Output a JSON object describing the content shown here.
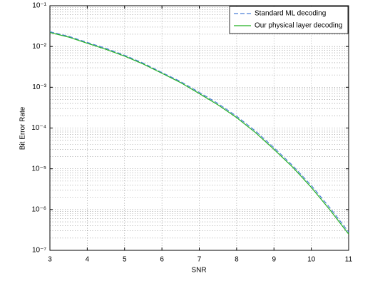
{
  "chart_data": {
    "type": "line",
    "xlabel": "SNR",
    "ylabel": "Bit Error Rate",
    "x": [
      3,
      3.5,
      4,
      4.5,
      5,
      5.5,
      6,
      6.5,
      7,
      7.5,
      8,
      8.5,
      9,
      9.5,
      10,
      10.5,
      11
    ],
    "series": [
      {
        "name": "Standard ML decoding",
        "color": "#4a7fd8",
        "dash": true,
        "values": [
          0.023,
          0.0178,
          0.0126,
          0.009,
          0.0061,
          0.0039,
          0.0023,
          0.00138,
          0.00075,
          0.0004,
          0.000195,
          8.5e-05,
          3.3e-05,
          1.2e-05,
          3.9e-06,
          1.1e-06,
          2.8e-07
        ]
      },
      {
        "name": "Our physical layer decoding",
        "color": "#22b022",
        "dash": false,
        "values": [
          0.022,
          0.017,
          0.012,
          0.0085,
          0.0058,
          0.0037,
          0.0022,
          0.0013,
          0.0007,
          0.00037,
          0.00018,
          7.8e-05,
          3e-05,
          1.1e-05,
          3.5e-06,
          9.8e-07,
          2.5e-07
        ]
      }
    ],
    "xlim": [
      3,
      11
    ],
    "xticks": [
      3,
      4,
      5,
      6,
      7,
      8,
      9,
      10,
      11
    ],
    "ylim": [
      1e-07,
      0.1
    ],
    "ylog": true,
    "yticks": [
      {
        "value": 1e-07,
        "label": "10⁻⁷"
      },
      {
        "value": 1e-06,
        "label": "10⁻⁶"
      },
      {
        "value": 1e-05,
        "label": "10⁻⁵"
      },
      {
        "value": 0.0001,
        "label": "10⁻⁴"
      },
      {
        "value": 0.001,
        "label": "10⁻³"
      },
      {
        "value": 0.01,
        "label": "10⁻²"
      },
      {
        "value": 0.1,
        "label": "10⁻¹"
      }
    ],
    "yminorticks": [
      2e-07,
      3e-07,
      4e-07,
      5e-07,
      6e-07,
      7e-07,
      8e-07,
      9e-07,
      2e-06,
      3e-06,
      4e-06,
      5e-06,
      6e-06,
      7e-06,
      8e-06,
      9e-06,
      2e-05,
      3e-05,
      4e-05,
      5e-05,
      6e-05,
      7e-05,
      8e-05,
      9e-05,
      0.0002,
      0.0003,
      0.0004,
      0.0005,
      0.0006,
      0.0007,
      0.0008,
      0.0009,
      0.002,
      0.003,
      0.004,
      0.005,
      0.006,
      0.007,
      0.008,
      0.009,
      0.02,
      0.03,
      0.04,
      0.05,
      0.06,
      0.07,
      0.08,
      0.09
    ],
    "grid": true,
    "legend": "upper right"
  }
}
